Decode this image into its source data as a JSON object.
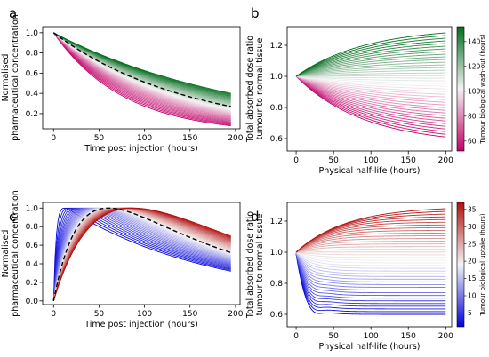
{
  "chart_data": [
    {
      "panel": "a",
      "type": "line",
      "xlabel": "Time post injection (hours)",
      "ylabel": [
        "Normalised",
        "pharmaceutical concentration"
      ],
      "xlim": [
        -12,
        205
      ],
      "ylim": [
        0.05,
        1.06
      ],
      "xticks": [
        0,
        50,
        100,
        150,
        200
      ],
      "yticks": [
        0.2,
        0.4,
        0.6,
        0.8,
        1.0
      ],
      "colorbar": "washout",
      "family": {
        "model": "exp_decay",
        "param_min": 55,
        "param_max": 150,
        "n": 40,
        "x": [
          0,
          195
        ],
        "y_start": 1.0,
        "y_end_range": [
          0.08,
          0.4
        ]
      },
      "reference": {
        "model": "exp_decay",
        "style": "dashed",
        "y_start": 1.0,
        "y_end": 0.27
      }
    },
    {
      "panel": "b",
      "type": "line",
      "xlabel": "Physical half-life (hours)",
      "ylabel": [
        "Total absorbed dose ratio",
        "tumour to normal tissue"
      ],
      "xlim": [
        -12,
        208
      ],
      "ylim": [
        0.52,
        1.32
      ],
      "xticks": [
        0,
        50,
        100,
        150,
        200
      ],
      "yticks": [
        0.6,
        0.8,
        1.0,
        1.2
      ],
      "colorbar": "washout",
      "family": {
        "model": "saturating",
        "param_min": 55,
        "param_max": 150,
        "n": 40,
        "x": [
          0,
          200
        ],
        "y_start": 1.0,
        "y_end_range": [
          0.61,
          1.28
        ]
      }
    },
    {
      "panel": "c",
      "type": "line",
      "xlabel": "Time post injection (hours)",
      "ylabel": [
        "Normalised",
        "pharmaceutical concentration"
      ],
      "xlim": [
        -12,
        205
      ],
      "ylim": [
        -0.04,
        1.06
      ],
      "xticks": [
        0,
        50,
        100,
        150,
        200
      ],
      "yticks": [
        0.0,
        0.2,
        0.4,
        0.6,
        0.8,
        1.0
      ],
      "colorbar": "uptake",
      "family": {
        "model": "bateman",
        "param_min": 2,
        "param_max": 37,
        "n": 40,
        "x": [
          0,
          195
        ]
      },
      "reference": {
        "model": "bateman",
        "style": "dashed",
        "param": 20
      }
    },
    {
      "panel": "d",
      "type": "line",
      "xlabel": "Physical half-life (hours)",
      "ylabel": [
        "Total absorbed dose ratio",
        "tumour to normal tissue"
      ],
      "xlim": [
        -12,
        208
      ],
      "ylim": [
        0.52,
        1.32
      ],
      "xticks": [
        0,
        50,
        100,
        150,
        200
      ],
      "yticks": [
        0.6,
        0.8,
        1.0,
        1.2
      ],
      "colorbar": "uptake",
      "family": {
        "model": "dip_recover",
        "param_min": 2,
        "param_max": 37,
        "n": 40,
        "x": [
          0,
          200
        ],
        "y_start": 1.0,
        "y_end_range": [
          0.6,
          1.28
        ]
      }
    }
  ],
  "colorbars": {
    "washout": {
      "label": "Tumour biological wash-out (hours)",
      "range": [
        52,
        152
      ],
      "ticks": [
        60,
        80,
        100,
        120,
        140
      ],
      "colors": {
        "low": "#c2006a",
        "mid": "#f4f2f2",
        "high": "#006d1c"
      }
    },
    "uptake": {
      "label": "Tumour biological uptake (hours)",
      "range": [
        1,
        37
      ],
      "ticks": [
        5,
        10,
        15,
        20,
        25,
        30,
        35
      ],
      "colors": {
        "low": "#0000dd",
        "mid": "#f4f4f4",
        "high": "#b2100e"
      }
    }
  },
  "colors": {
    "reference_line": "#000000",
    "axes": "#000000"
  }
}
